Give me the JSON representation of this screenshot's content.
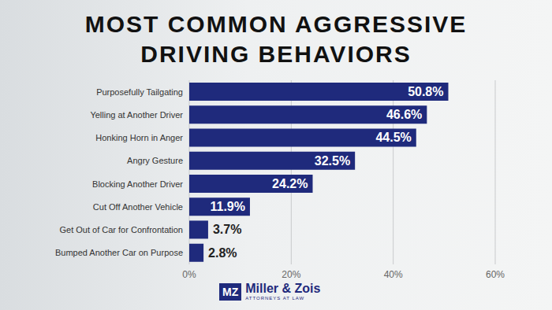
{
  "chart_data": {
    "type": "bar",
    "title": "MOST COMMON AGGRESSIVE DRIVING BEHAVIORS",
    "orientation": "horizontal",
    "categories": [
      "Purposefully Tailgating",
      "Yelling at Another Driver",
      "Honking Horn in Anger",
      "Angry Gesture",
      "Blocking Another Driver",
      "Cut Off Another Vehicle",
      "Get Out of Car for Confrontation",
      "Bumped Another Car on Purpose"
    ],
    "values": [
      50.8,
      46.6,
      44.5,
      32.5,
      24.2,
      11.9,
      3.7,
      2.8
    ],
    "value_labels": [
      "50.8%",
      "46.6%",
      "44.5%",
      "32.5%",
      "24.2%",
      "11.9%",
      "3.7%",
      "2.8%"
    ],
    "data_labels": true,
    "color": "#1f2a7c",
    "xlim": [
      0,
      60
    ],
    "xticks": [
      {
        "value": 0,
        "label": "0%"
      },
      {
        "value": 20,
        "label": "20%"
      },
      {
        "value": 40,
        "label": "40%"
      },
      {
        "value": 60,
        "label": "60%"
      }
    ],
    "grid": true,
    "annotations": [
      "MZ",
      "Miller & Zois",
      "ATTORNEYS AT LAW"
    ]
  }
}
